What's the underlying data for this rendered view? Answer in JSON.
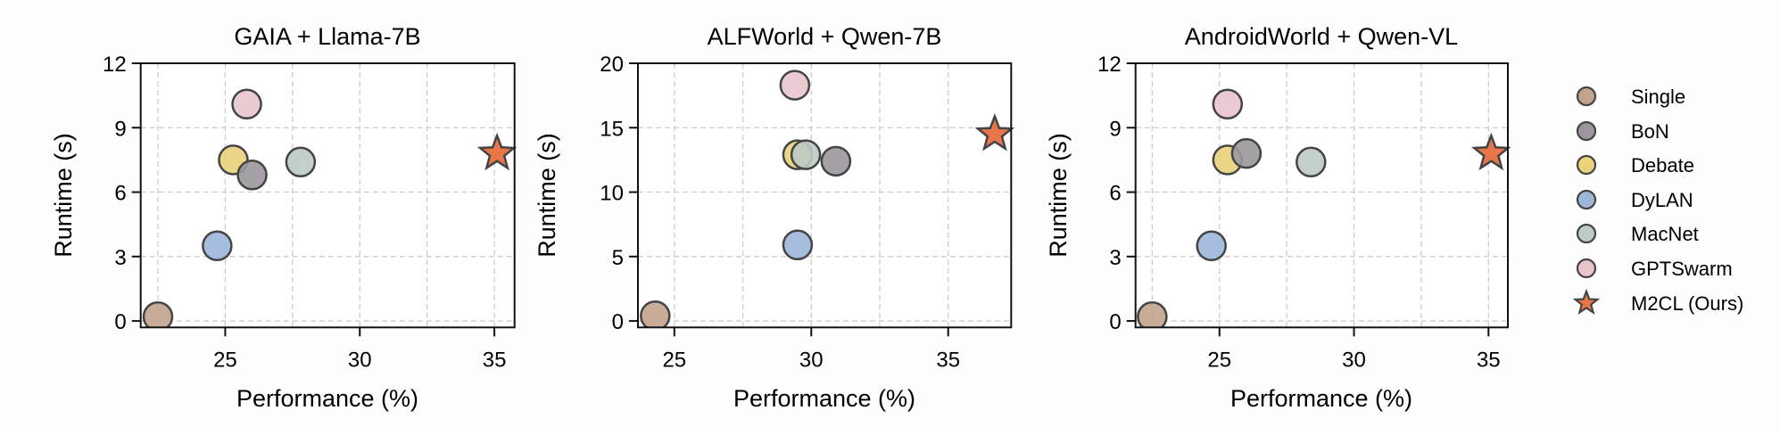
{
  "chart_data": [
    {
      "type": "scatter",
      "title": "GAIA + Llama-7B",
      "xlabel": "Performance (%)",
      "ylabel": "Runtime (s)",
      "xlim": [
        21.86,
        35.75
      ],
      "ylim": [
        -0.3,
        12
      ],
      "xticks": [
        25,
        30,
        35
      ],
      "yticks": [
        0,
        3,
        6,
        9,
        12
      ],
      "grid": true,
      "grid_x": [
        22.5,
        25,
        27.5,
        30,
        32.5,
        35
      ],
      "series": [
        {
          "name": "Single",
          "x": 22.5,
          "y": 0.2
        },
        {
          "name": "DyLAN",
          "x": 24.7,
          "y": 3.5
        },
        {
          "name": "Debate",
          "x": 25.3,
          "y": 7.5
        },
        {
          "name": "BoN",
          "x": 26.0,
          "y": 6.8
        },
        {
          "name": "GPTSwarm",
          "x": 25.8,
          "y": 10.1
        },
        {
          "name": "MacNet",
          "x": 27.8,
          "y": 7.4
        },
        {
          "name": "M2CL (Ours)",
          "x": 35.1,
          "y": 7.8
        }
      ]
    },
    {
      "type": "scatter",
      "title": "ALFWorld + Qwen-7B",
      "xlabel": "Performance (%)",
      "ylabel": "Runtime (s)",
      "xlim": [
        23.67,
        37.3
      ],
      "ylim": [
        -0.5,
        20
      ],
      "xticks": [
        25,
        30,
        35
      ],
      "yticks": [
        0,
        5,
        10,
        15,
        20
      ],
      "grid": true,
      "grid_x": [
        25,
        27.5,
        30,
        32.5,
        35
      ],
      "series": [
        {
          "name": "Single",
          "x": 24.3,
          "y": 0.4
        },
        {
          "name": "DyLAN",
          "x": 29.5,
          "y": 5.9
        },
        {
          "name": "Debate",
          "x": 29.5,
          "y": 12.9
        },
        {
          "name": "MacNet",
          "x": 29.8,
          "y": 12.9
        },
        {
          "name": "BoN",
          "x": 30.9,
          "y": 12.4
        },
        {
          "name": "GPTSwarm",
          "x": 29.4,
          "y": 18.3
        },
        {
          "name": "M2CL (Ours)",
          "x": 36.7,
          "y": 14.5
        }
      ]
    },
    {
      "type": "scatter",
      "title": "AndroidWorld + Qwen-VL",
      "xlabel": "Performance (%)",
      "ylabel": "Runtime (s)",
      "xlim": [
        21.88,
        35.72
      ],
      "ylim": [
        -0.3,
        12
      ],
      "xticks": [
        25,
        30,
        35
      ],
      "yticks": [
        0,
        3,
        6,
        9,
        12
      ],
      "grid": true,
      "grid_x": [
        22.5,
        25,
        27.5,
        30,
        32.5,
        35
      ],
      "series": [
        {
          "name": "Single",
          "x": 22.5,
          "y": 0.2
        },
        {
          "name": "DyLAN",
          "x": 24.7,
          "y": 3.5
        },
        {
          "name": "Debate",
          "x": 25.3,
          "y": 7.5
        },
        {
          "name": "BoN",
          "x": 26.0,
          "y": 7.8
        },
        {
          "name": "GPTSwarm",
          "x": 25.3,
          "y": 10.1
        },
        {
          "name": "MacNet",
          "x": 28.4,
          "y": 7.4
        },
        {
          "name": "M2CL (Ours)",
          "x": 35.1,
          "y": 7.8
        }
      ]
    }
  ],
  "legend": {
    "position": "right",
    "items": [
      {
        "label": "Single",
        "marker": "circle",
        "color": "#c2a38c"
      },
      {
        "label": "BoN",
        "marker": "circle",
        "color": "#9b979d"
      },
      {
        "label": "Debate",
        "marker": "circle",
        "color": "#e9d27a"
      },
      {
        "label": "DyLAN",
        "marker": "circle",
        "color": "#9db6d9"
      },
      {
        "label": "MacNet",
        "marker": "circle",
        "color": "#bccbc4"
      },
      {
        "label": "GPTSwarm",
        "marker": "circle",
        "color": "#e8c5cd"
      },
      {
        "label": "M2CL (Ours)",
        "marker": "star",
        "color": "#e8764a"
      }
    ]
  },
  "style": {
    "edge_color": "#444444",
    "grid_color": "#cccccc"
  }
}
